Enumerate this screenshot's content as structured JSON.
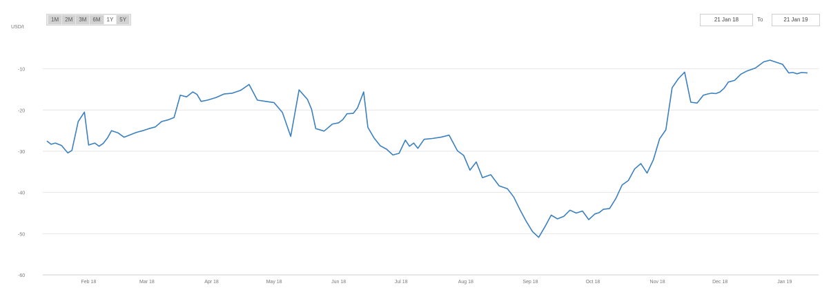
{
  "controls": {
    "ranges": [
      "1M",
      "2M",
      "3M",
      "6M",
      "1Y",
      "5Y"
    ],
    "selected_range": "5Y",
    "from_date": "21 Jan 18",
    "to_label": "To",
    "to_date": "21 Jan 19"
  },
  "chart_data": {
    "type": "line",
    "title": "",
    "xlabel": "",
    "ylabel": "USD/t",
    "ylim": [
      -60,
      0
    ],
    "yticks": [
      -10,
      -20,
      -30,
      -40,
      -50,
      -60
    ],
    "ytick_labels": [
      "-10",
      "-20",
      "-30",
      "-40",
      "-50",
      "-60"
    ],
    "xticks": [
      "Feb 18",
      "Mar 18",
      "Apr 18",
      "May 18",
      "Jun 18",
      "Jul 18",
      "Aug 18",
      "Sep 18",
      "Oct 18",
      "Nov 18",
      "Dec 18",
      "Jan 19"
    ],
    "grid": true,
    "legend": "none",
    "line_color": "#3a7fbf",
    "series": [
      {
        "x": [
          "2018-01-21",
          "2018-01-23",
          "2018-01-25",
          "2018-01-28",
          "2018-01-31",
          "2018-02-02",
          "2018-02-05",
          "2018-02-08",
          "2018-02-10",
          "2018-02-13",
          "2018-02-15",
          "2018-02-17",
          "2018-02-19",
          "2018-02-21",
          "2018-02-24",
          "2018-02-27",
          "2018-03-02",
          "2018-03-05",
          "2018-03-08",
          "2018-03-11",
          "2018-03-14",
          "2018-03-17",
          "2018-03-20",
          "2018-03-23",
          "2018-03-26",
          "2018-03-29",
          "2018-04-01",
          "2018-04-03",
          "2018-04-05",
          "2018-04-08",
          "2018-04-12",
          "2018-04-16",
          "2018-04-20",
          "2018-04-24",
          "2018-04-28",
          "2018-05-02",
          "2018-05-06",
          "2018-05-10",
          "2018-05-14",
          "2018-05-18",
          "2018-05-22",
          "2018-05-26",
          "2018-05-28",
          "2018-05-30",
          "2018-06-03",
          "2018-06-07",
          "2018-06-10",
          "2018-06-12",
          "2018-06-14",
          "2018-06-17",
          "2018-06-19",
          "2018-06-22",
          "2018-06-24",
          "2018-06-27",
          "2018-06-30",
          "2018-07-03",
          "2018-07-06",
          "2018-07-09",
          "2018-07-12",
          "2018-07-14",
          "2018-07-16",
          "2018-07-18",
          "2018-07-21",
          "2018-07-25",
          "2018-07-29",
          "2018-08-02",
          "2018-08-06",
          "2018-08-09",
          "2018-08-12",
          "2018-08-15",
          "2018-08-18",
          "2018-08-22",
          "2018-08-26",
          "2018-08-30",
          "2018-09-02",
          "2018-09-05",
          "2018-09-08",
          "2018-09-11",
          "2018-09-14",
          "2018-09-17",
          "2018-09-20",
          "2018-09-23",
          "2018-09-26",
          "2018-09-29",
          "2018-10-02",
          "2018-10-05",
          "2018-10-08",
          "2018-10-11",
          "2018-10-13",
          "2018-10-15",
          "2018-10-18",
          "2018-10-21",
          "2018-10-24",
          "2018-10-27",
          "2018-10-30",
          "2018-11-02",
          "2018-11-05",
          "2018-11-08",
          "2018-11-11",
          "2018-11-14",
          "2018-11-17",
          "2018-11-20",
          "2018-11-23",
          "2018-11-26",
          "2018-11-29",
          "2018-12-02",
          "2018-12-04",
          "2018-12-06",
          "2018-12-08",
          "2018-12-10",
          "2018-12-12",
          "2018-12-14",
          "2018-12-17",
          "2018-12-20",
          "2018-12-23",
          "2018-12-27",
          "2018-12-31",
          "2019-01-03",
          "2019-01-06",
          "2019-01-09",
          "2019-01-12",
          "2019-01-14",
          "2019-01-16",
          "2019-01-18",
          "2019-01-21"
        ],
        "values": [
          -27.5,
          -28.3,
          -28.0,
          -28.6,
          -30.4,
          -29.8,
          -22.8,
          -20.5,
          -28.5,
          -28.0,
          -28.8,
          -28.1,
          -26.8,
          -25.0,
          -25.5,
          -26.6,
          -26.0,
          -25.4,
          -25.0,
          -24.5,
          -24.1,
          -22.8,
          -22.4,
          -21.8,
          -16.4,
          -16.8,
          -15.6,
          -16.2,
          -17.9,
          -17.6,
          -17.0,
          -16.1,
          -15.9,
          -15.2,
          -13.8,
          -17.6,
          -17.9,
          -18.2,
          -20.6,
          -26.4,
          -15.1,
          -17.4,
          -19.8,
          -24.5,
          -25.1,
          -23.4,
          -23.1,
          -22.3,
          -20.9,
          -20.8,
          -19.5,
          -15.6,
          -24.2,
          -26.8,
          -28.7,
          -29.5,
          -30.9,
          -30.5,
          -27.3,
          -28.8,
          -28.0,
          -29.3,
          -27.1,
          -26.9,
          -26.6,
          -26.1,
          -29.9,
          -31.0,
          -34.6,
          -32.6,
          -36.4,
          -35.7,
          -38.4,
          -39.1,
          -41.1,
          -44.2,
          -47.0,
          -49.5,
          -50.9,
          -48.3,
          -45.5,
          -46.4,
          -45.8,
          -44.3,
          -45.0,
          -44.5,
          -46.6,
          -45.2,
          -44.9,
          -44.1,
          -43.9,
          -41.5,
          -38.2,
          -37.1,
          -34.3,
          -33.0,
          -35.3,
          -32.1,
          -27.0,
          -24.8,
          -14.6,
          -12.4,
          -10.8,
          -18.1,
          -18.3,
          -16.4,
          -16.1,
          -15.9,
          -16.0,
          -15.6,
          -14.7,
          -13.2,
          -12.8,
          -11.3,
          -10.5,
          -9.8,
          -8.3,
          -7.9,
          -8.4,
          -8.9,
          -11.0,
          -10.9,
          -11.2,
          -10.9,
          -11.0
        ]
      }
    ]
  }
}
